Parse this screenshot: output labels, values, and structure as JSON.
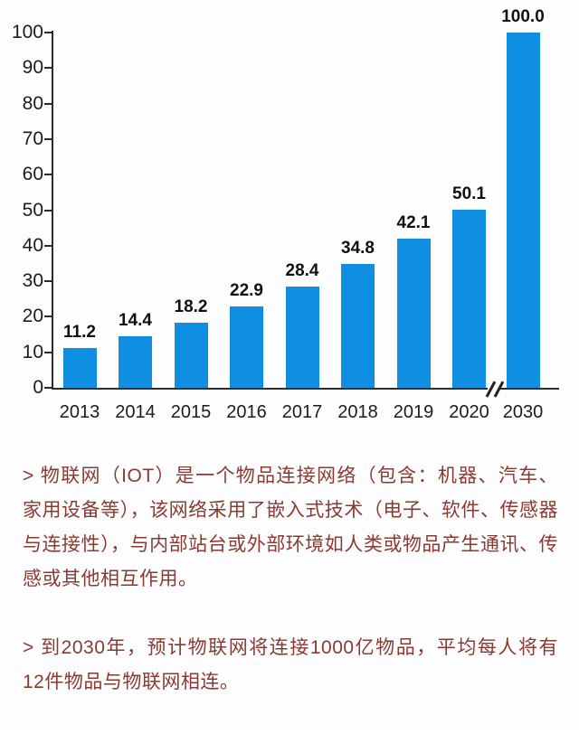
{
  "chart_data": {
    "type": "bar",
    "title": "",
    "xlabel": "",
    "ylabel": "",
    "categories": [
      "2013",
      "2014",
      "2015",
      "2016",
      "2017",
      "2018",
      "2019",
      "2020",
      "2030"
    ],
    "values": [
      11.2,
      14.4,
      18.2,
      22.9,
      28.4,
      34.8,
      42.1,
      50.1,
      100.0
    ],
    "value_labels": [
      "11.2",
      "14.4",
      "18.2",
      "22.9",
      "28.4",
      "34.8",
      "42.1",
      "50.1",
      "100.0"
    ],
    "yticks": [
      0,
      10,
      20,
      30,
      40,
      50,
      60,
      70,
      80,
      90,
      100
    ],
    "ylim": [
      0,
      100
    ],
    "grid": false,
    "legend": null,
    "bar_color": "#0e8fe2",
    "axis_break_between": [
      "2020",
      "2030"
    ]
  },
  "notes": {
    "text_color": "#8a3a32",
    "paragraph1": "> 物联网（IOT）是一个物品连接网络（包含：机器、汽车、家用设备等），该网络采用了嵌入式技术（电子、软件、传感器与连接性），与内部站台或外部环境如人类或物品产生通讯、传感或其他相互作用。",
    "paragraph2": "> 到2030年，预计物联网将连接1000亿物品，平均每人将有12件物品与物联网相连。"
  }
}
